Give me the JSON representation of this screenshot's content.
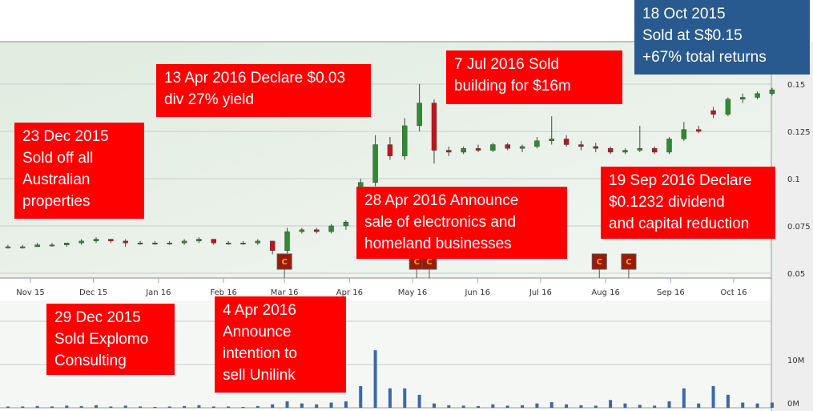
{
  "chart_data": {
    "type": "candlestick",
    "title": "",
    "price_axis": {
      "ticks": [
        0.05,
        0.075,
        0.1,
        0.125,
        0.15
      ],
      "tick_labels": [
        "0.05",
        "0.075",
        "0.1",
        "0.125",
        "0.15"
      ],
      "range": [
        0.05,
        0.17
      ]
    },
    "volume_axis": {
      "ticks": [
        0,
        10
      ],
      "tick_labels": [
        "0M",
        "10M"
      ],
      "unit": "M",
      "range": [
        0,
        25
      ]
    },
    "x_ticks": [
      {
        "date": "2015-11-01",
        "label": "Nov 15"
      },
      {
        "date": "2015-12-01",
        "label": "Dec 15"
      },
      {
        "date": "2016-01-01",
        "label": "Jan 16"
      },
      {
        "date": "2016-02-01",
        "label": "Feb 16"
      },
      {
        "date": "2016-03-01",
        "label": "Mar 16"
      },
      {
        "date": "2016-04-01",
        "label": "Apr 16"
      },
      {
        "date": "2016-05-01",
        "label": "May 16"
      },
      {
        "date": "2016-06-01",
        "label": "Jun 16"
      },
      {
        "date": "2016-07-01",
        "label": "Jul 16"
      },
      {
        "date": "2016-08-01",
        "label": "Aug 16"
      },
      {
        "date": "2016-09-01",
        "label": "Sep 16"
      },
      {
        "date": "2016-10-01",
        "label": "Oct 16"
      }
    ],
    "x_range": [
      "2015-10-17",
      "2016-10-23"
    ],
    "grid": true,
    "colors": {
      "up": "#2e8b2e",
      "down": "#c0141e",
      "volume": "#3a68a8",
      "panel": "#e6f0e6",
      "marker": "#9b1b08"
    },
    "ohlc": [
      [
        "2015-10-19",
        0.064,
        0.065,
        0.063,
        0.064
      ],
      [
        "2015-10-26",
        0.064,
        0.065,
        0.063,
        0.064
      ],
      [
        "2015-11-02",
        0.064,
        0.066,
        0.064,
        0.065
      ],
      [
        "2015-11-09",
        0.065,
        0.066,
        0.064,
        0.065
      ],
      [
        "2015-11-16",
        0.065,
        0.066,
        0.064,
        0.066
      ],
      [
        "2015-11-23",
        0.066,
        0.068,
        0.065,
        0.067
      ],
      [
        "2015-11-30",
        0.067,
        0.069,
        0.066,
        0.068
      ],
      [
        "2015-12-07",
        0.068,
        0.068,
        0.066,
        0.067
      ],
      [
        "2015-12-14",
        0.067,
        0.068,
        0.064,
        0.066
      ],
      [
        "2015-12-21",
        0.066,
        0.067,
        0.065,
        0.066
      ],
      [
        "2015-12-28",
        0.066,
        0.067,
        0.065,
        0.066
      ],
      [
        "2016-01-04",
        0.066,
        0.067,
        0.065,
        0.066
      ],
      [
        "2016-01-11",
        0.066,
        0.068,
        0.065,
        0.067
      ],
      [
        "2016-01-18",
        0.067,
        0.069,
        0.066,
        0.068
      ],
      [
        "2016-01-25",
        0.068,
        0.068,
        0.065,
        0.066
      ],
      [
        "2016-02-01",
        0.066,
        0.067,
        0.065,
        0.066
      ],
      [
        "2016-02-08",
        0.066,
        0.067,
        0.065,
        0.066
      ],
      [
        "2016-02-15",
        0.066,
        0.068,
        0.065,
        0.067
      ],
      [
        "2016-02-22",
        0.067,
        0.067,
        0.06,
        0.062
      ],
      [
        "2016-02-29",
        0.062,
        0.074,
        0.06,
        0.072
      ],
      [
        "2016-03-07",
        0.072,
        0.074,
        0.071,
        0.073
      ],
      [
        "2016-03-14",
        0.073,
        0.074,
        0.071,
        0.072
      ],
      [
        "2016-03-21",
        0.072,
        0.076,
        0.071,
        0.075
      ],
      [
        "2016-03-28",
        0.075,
        0.078,
        0.073,
        0.077
      ],
      [
        "2016-04-04",
        0.077,
        0.1,
        0.076,
        0.098
      ],
      [
        "2016-04-11",
        0.098,
        0.123,
        0.096,
        0.118
      ],
      [
        "2016-04-18",
        0.118,
        0.122,
        0.11,
        0.112
      ],
      [
        "2016-04-25",
        0.112,
        0.132,
        0.11,
        0.128
      ],
      [
        "2016-05-02",
        0.128,
        0.15,
        0.125,
        0.14
      ],
      [
        "2016-05-09",
        0.14,
        0.142,
        0.108,
        0.115
      ],
      [
        "2016-05-16",
        0.115,
        0.117,
        0.112,
        0.114
      ],
      [
        "2016-05-23",
        0.114,
        0.117,
        0.113,
        0.116
      ],
      [
        "2016-05-30",
        0.116,
        0.118,
        0.114,
        0.115
      ],
      [
        "2016-06-06",
        0.115,
        0.119,
        0.114,
        0.118
      ],
      [
        "2016-06-13",
        0.118,
        0.119,
        0.115,
        0.116
      ],
      [
        "2016-06-20",
        0.116,
        0.118,
        0.114,
        0.117
      ],
      [
        "2016-06-27",
        0.117,
        0.122,
        0.116,
        0.12
      ],
      [
        "2016-07-04",
        0.12,
        0.133,
        0.118,
        0.121
      ],
      [
        "2016-07-11",
        0.121,
        0.123,
        0.117,
        0.118
      ],
      [
        "2016-07-18",
        0.118,
        0.12,
        0.115,
        0.117
      ],
      [
        "2016-07-25",
        0.117,
        0.119,
        0.114,
        0.116
      ],
      [
        "2016-08-01",
        0.116,
        0.117,
        0.113,
        0.114
      ],
      [
        "2016-08-08",
        0.114,
        0.116,
        0.113,
        0.115
      ],
      [
        "2016-08-15",
        0.115,
        0.128,
        0.114,
        0.116
      ],
      [
        "2016-08-22",
        0.116,
        0.117,
        0.113,
        0.114
      ],
      [
        "2016-08-29",
        0.114,
        0.122,
        0.113,
        0.121
      ],
      [
        "2016-09-05",
        0.121,
        0.13,
        0.12,
        0.126
      ],
      [
        "2016-09-12",
        0.126,
        0.128,
        0.124,
        0.125
      ],
      [
        "2016-09-19",
        0.136,
        0.138,
        0.132,
        0.134
      ],
      [
        "2016-09-26",
        0.134,
        0.143,
        0.133,
        0.142
      ],
      [
        "2016-10-03",
        0.142,
        0.145,
        0.14,
        0.143
      ],
      [
        "2016-10-10",
        0.143,
        0.146,
        0.142,
        0.145
      ],
      [
        "2016-10-17",
        0.145,
        0.148,
        0.144,
        0.147
      ]
    ],
    "volume_m": [
      0.3,
      0.3,
      0.4,
      0.3,
      0.5,
      0.4,
      0.6,
      0.3,
      0.5,
      0.3,
      0.2,
      0.3,
      0.4,
      0.6,
      0.3,
      0.3,
      0.2,
      0.4,
      0.8,
      1.5,
      1,
      0.8,
      1.2,
      1.5,
      5,
      13.3,
      4.5,
      4.5,
      3,
      1,
      0.6,
      0.5,
      0.4,
      0.8,
      0.5,
      0.6,
      1,
      1.3,
      0.8,
      0.6,
      0.5,
      1.8,
      1,
      0.7,
      0.5,
      1.5,
      4.5,
      1,
      5,
      3,
      1.2,
      1,
      1.2
    ],
    "markers": [
      {
        "date": "2016-03-01",
        "label": "C"
      },
      {
        "date": "2016-05-03",
        "label": "C"
      },
      {
        "date": "2016-05-09",
        "label": "C"
      },
      {
        "date": "2016-07-29",
        "label": "C"
      },
      {
        "date": "2016-08-12",
        "label": "C"
      }
    ]
  },
  "annotations": [
    {
      "text": "18 Oct 2015\nSold at S$0.15\n+67% total returns",
      "color": "#285a8f"
    },
    {
      "text": "13 Apr 2016 Declare $0.03\ndiv 27% yield",
      "color": "#fe0000"
    },
    {
      "text": "7 Jul 2016 Sold\nbuilding for $16m",
      "color": "#fe0000"
    },
    {
      "text": "23 Dec 2015\nSold off all\nAustralian\nproperties",
      "color": "#fe0000"
    },
    {
      "text": "28 Apr 2016 Announce\nsale of electronics and\nhomeland businesses",
      "color": "#fe0000"
    },
    {
      "text": "19 Sep 2016 Declare\n$0.1232 dividend\nand capital reduction",
      "color": "#fe0000"
    },
    {
      "text": "29 Dec 2015\nSold Explomo\nConsulting",
      "color": "#fe0000"
    },
    {
      "text": "4 Apr 2016\nAnnounce\nintention to\nsell Unilink",
      "color": "#fe0000"
    }
  ]
}
